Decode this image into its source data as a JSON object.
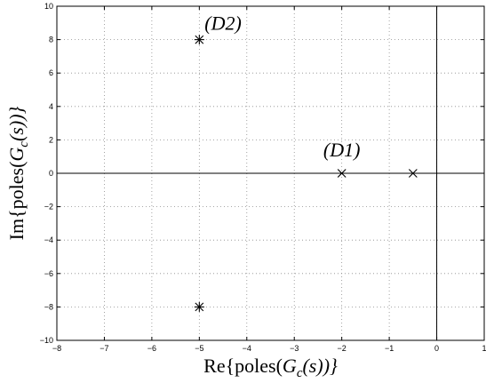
{
  "chart_data": {
    "type": "scatter",
    "title": "",
    "xlabel": {
      "prefix": "Re{poles(",
      "G": "G",
      "sub": "c",
      "suffix": "(s))}"
    },
    "ylabel": {
      "prefix": "Im{poles(",
      "G": "G",
      "sub": "c",
      "suffix": "(s))}"
    },
    "xlim": [
      -8,
      1
    ],
    "ylim": [
      -10,
      10
    ],
    "xticks": [
      -8,
      -7,
      -6,
      -5,
      -4,
      -3,
      -2,
      -1,
      0,
      1
    ],
    "yticks": [
      -10,
      -8,
      -6,
      -4,
      -2,
      0,
      2,
      4,
      6,
      8,
      10
    ],
    "grid": true,
    "reference_lines": {
      "x": 0,
      "y": 0
    },
    "series": [
      {
        "label": "(D1)",
        "marker": "x",
        "points": [
          {
            "x": -2,
            "y": 0
          },
          {
            "x": -0.5,
            "y": 0
          }
        ]
      },
      {
        "label": "(D2)",
        "marker": "asterisk",
        "points": [
          {
            "x": -5,
            "y": 8
          },
          {
            "x": -5,
            "y": -8
          }
        ]
      }
    ],
    "annotations": [
      {
        "text": "(D1)",
        "x": -2,
        "y": 1.0
      },
      {
        "text": "(D2)",
        "x": -4.5,
        "y": 8.6
      }
    ]
  }
}
